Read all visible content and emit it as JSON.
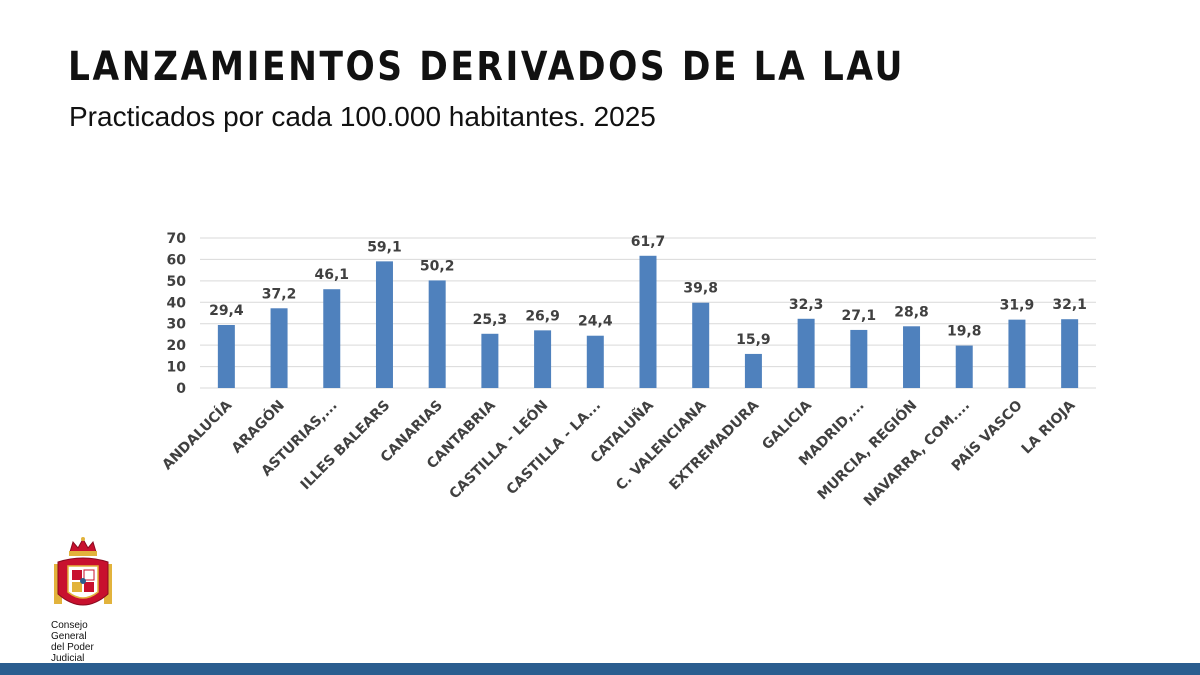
{
  "header": {
    "title": "LANZAMIENTOS DERIVADOS DE LA LAU",
    "subtitle": "Practicados por cada 100.000 habitantes. 2025"
  },
  "logo": {
    "line1": "Consejo General",
    "line2": "del Poder Judicial"
  },
  "colors": {
    "bar": "#4f81bd",
    "grid": "#d9d9d9",
    "text": "#404040",
    "brand_bar": "#2a5d8f",
    "emblem_red": "#c8102e",
    "emblem_gold": "#e2b33c"
  },
  "chart_data": {
    "type": "bar",
    "title": "",
    "xlabel": "",
    "ylabel": "",
    "ylim": [
      0,
      70
    ],
    "yticks": [
      0,
      10,
      20,
      30,
      40,
      50,
      60,
      70
    ],
    "grid": true,
    "categories": [
      "ANDALUCÍA",
      "ARAGÓN",
      "ASTURIAS,...",
      "ILLES BALEARS",
      "CANARIAS",
      "CANTABRIA",
      "CASTILLA - LEÓN",
      "CASTILLA - LA...",
      "CATALUÑA",
      "C. VALENCIANA",
      "EXTREMADURA",
      "GALICIA",
      "MADRID,...",
      "MURCIA, REGIÓN",
      "NAVARRA, COM....",
      "PAÍS VASCO",
      "LA RIOJA"
    ],
    "values": [
      29.4,
      37.2,
      46.1,
      59.1,
      50.2,
      25.3,
      26.9,
      24.4,
      61.7,
      39.8,
      15.9,
      32.3,
      27.1,
      28.8,
      19.8,
      31.9,
      32.1
    ],
    "value_labels": [
      "29,4",
      "37,2",
      "46,1",
      "59,1",
      "50,2",
      "25,3",
      "26,9",
      "24,4",
      "61,7",
      "39,8",
      "15,9",
      "32,3",
      "27,1",
      "28,8",
      "19,8",
      "31,9",
      "32,1"
    ]
  }
}
